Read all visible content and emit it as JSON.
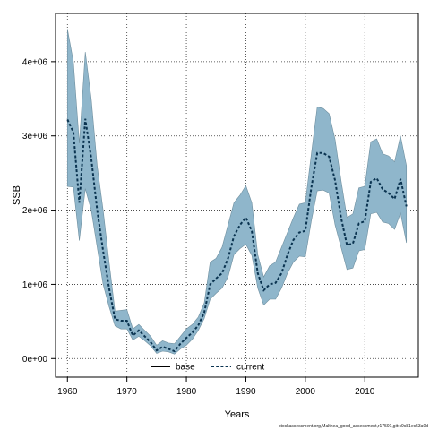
{
  "chart_data": {
    "type": "line",
    "xlabel": "Years",
    "ylabel": "SSB",
    "xlim": [
      1958,
      2019
    ],
    "ylim": [
      -250000,
      4650000
    ],
    "x_ticks": [
      1960,
      1970,
      1980,
      1990,
      2000,
      2010
    ],
    "x_tick_labels": [
      "1960",
      "1970",
      "1980",
      "1990",
      "2000",
      "2010"
    ],
    "y_ticks": [
      0,
      1000000,
      2000000,
      3000000,
      4000000
    ],
    "y_tick_labels": [
      "0e+00",
      "1e+06",
      "2e+06",
      "3e+06",
      "4e+06"
    ],
    "grid": true,
    "legend_position": "bottom-center",
    "legend": [
      {
        "label": "base",
        "style": "solid",
        "color": "#000000"
      },
      {
        "label": "current",
        "style": "dashed",
        "color": "#0a3350"
      }
    ],
    "band": {
      "color": "#8fb6cb",
      "upper": [
        4440000,
        4000000,
        2900000,
        4130000,
        3500000,
        2600000,
        2000000,
        1300000,
        640000,
        650000,
        660000,
        400000,
        460000,
        380000,
        300000,
        180000,
        240000,
        210000,
        200000,
        300000,
        400000,
        460000,
        560000,
        750000,
        1300000,
        1350000,
        1500000,
        1800000,
        2100000,
        2200000,
        2330000,
        2100000,
        1400000,
        1100000,
        1250000,
        1300000,
        1500000,
        1700000,
        1900000,
        2080000,
        2100000,
        2750000,
        3390000,
        3370000,
        3300000,
        2950000,
        2400000,
        1900000,
        1950000,
        2300000,
        2320000,
        2920000,
        2960000,
        2760000,
        2730000,
        2650000,
        3000000,
        2600000
      ],
      "lower": [
        2320000,
        2310000,
        1590000,
        2290000,
        2000000,
        1500000,
        1000000,
        700000,
        440000,
        400000,
        400000,
        250000,
        300000,
        240000,
        170000,
        70000,
        100000,
        90000,
        60000,
        130000,
        180000,
        260000,
        380000,
        540000,
        800000,
        880000,
        950000,
        1100000,
        1400000,
        1480000,
        1540000,
        1390000,
        950000,
        720000,
        800000,
        800000,
        950000,
        1150000,
        1300000,
        1380000,
        1370000,
        1850000,
        2260000,
        2270000,
        2230000,
        1800000,
        1500000,
        1200000,
        1220000,
        1450000,
        1470000,
        1950000,
        1970000,
        1840000,
        1820000,
        1740000,
        1960000,
        1560000
      ]
    },
    "series": [
      {
        "name": "current",
        "x": [
          1960,
          1961,
          1962,
          1963,
          1964,
          1965,
          1966,
          1967,
          1968,
          1969,
          1970,
          1971,
          1972,
          1973,
          1974,
          1975,
          1976,
          1977,
          1978,
          1979,
          1980,
          1981,
          1982,
          1983,
          1984,
          1985,
          1986,
          1987,
          1988,
          1989,
          1990,
          1991,
          1992,
          1993,
          1994,
          1995,
          1996,
          1997,
          1998,
          1999,
          2000,
          2001,
          2002,
          2003,
          2004,
          2005,
          2006,
          2007,
          2008,
          2009,
          2010,
          2011,
          2012,
          2013,
          2014,
          2015,
          2016,
          2017
        ],
        "values": [
          3220000,
          3050000,
          2100000,
          3230000,
          2700000,
          2000000,
          1450000,
          950000,
          530000,
          510000,
          510000,
          310000,
          380000,
          300000,
          220000,
          110000,
          160000,
          130000,
          100000,
          200000,
          280000,
          350000,
          450000,
          620000,
          1000000,
          1080000,
          1150000,
          1350000,
          1650000,
          1800000,
          1900000,
          1720000,
          1150000,
          920000,
          1000000,
          1020000,
          1150000,
          1400000,
          1600000,
          1700000,
          1720000,
          2300000,
          2770000,
          2770000,
          2720000,
          2400000,
          1900000,
          1530000,
          1550000,
          1820000,
          1850000,
          2380000,
          2430000,
          2280000,
          2230000,
          2150000,
          2420000,
          2050000
        ]
      }
    ],
    "annotation": "stockassessment.org,Malthea_good_assessment,r17591,git:c9c81ec53a0d"
  }
}
